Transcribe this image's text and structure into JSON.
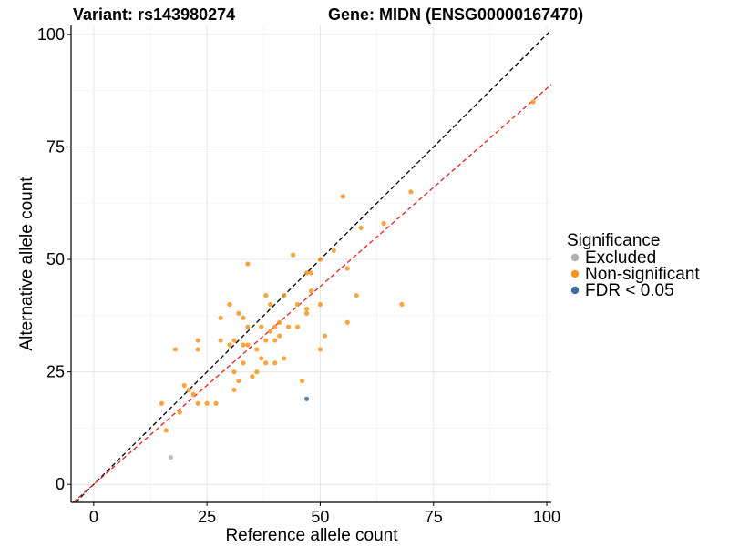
{
  "chart_data": {
    "type": "scatter",
    "title_left": "Variant: rs143980274",
    "title_right": "Gene: MIDN (ENSG00000167470)",
    "xlabel": "Reference allele count",
    "ylabel": "Alternative allele count",
    "xlim": [
      -5,
      101
    ],
    "ylim": [
      -4,
      102
    ],
    "xticks": [
      0,
      25,
      50,
      75,
      100
    ],
    "yticks": [
      0,
      25,
      50,
      75,
      100
    ],
    "grid": true,
    "legend": {
      "title": "Significance",
      "position": "right",
      "entries": [
        {
          "name": "Excluded",
          "color": "#b0b0b0"
        },
        {
          "name": "Non-significant",
          "color": "#f7941d"
        },
        {
          "name": "FDR < 0.05",
          "color": "#3b6ea5"
        }
      ]
    },
    "reference_lines": [
      {
        "name": "identity",
        "color": "#000000",
        "slope": 1.0,
        "intercept": 0
      },
      {
        "name": "fit",
        "color": "#e8201c",
        "slope": 0.88,
        "intercept": 0
      }
    ],
    "series": [
      {
        "name": "Excluded",
        "color": "#b0b0b0",
        "points": [
          [
            17,
            6
          ]
        ]
      },
      {
        "name": "FDR < 0.05",
        "color": "#3b6ea5",
        "points": [
          [
            47,
            19
          ]
        ]
      },
      {
        "name": "Non-significant",
        "color": "#f7941d",
        "points": [
          [
            97,
            85
          ],
          [
            70,
            65
          ],
          [
            55,
            64
          ],
          [
            64,
            58
          ],
          [
            59,
            57
          ],
          [
            53,
            52
          ],
          [
            44,
            51
          ],
          [
            50,
            50
          ],
          [
            34,
            49
          ],
          [
            56,
            48
          ],
          [
            48,
            47
          ],
          [
            47,
            47
          ],
          [
            58,
            42
          ],
          [
            68,
            40
          ],
          [
            50,
            40
          ],
          [
            48,
            43
          ],
          [
            38,
            42
          ],
          [
            42,
            42
          ],
          [
            30,
            40
          ],
          [
            39,
            40
          ],
          [
            45,
            40
          ],
          [
            47,
            39
          ],
          [
            32,
            38
          ],
          [
            47,
            38
          ],
          [
            28,
            37
          ],
          [
            33,
            37
          ],
          [
            41,
            36
          ],
          [
            56,
            36
          ],
          [
            34,
            35
          ],
          [
            40,
            35
          ],
          [
            37,
            35
          ],
          [
            43,
            35
          ],
          [
            45,
            35
          ],
          [
            39,
            34
          ],
          [
            41,
            33
          ],
          [
            51,
            33
          ],
          [
            38,
            32
          ],
          [
            23,
            32
          ],
          [
            28,
            32
          ],
          [
            31,
            32
          ],
          [
            40,
            32
          ],
          [
            34,
            31
          ],
          [
            30,
            31
          ],
          [
            33,
            31
          ],
          [
            36,
            30
          ],
          [
            50,
            30
          ],
          [
            18,
            30
          ],
          [
            23,
            30
          ],
          [
            42,
            28
          ],
          [
            37,
            28
          ],
          [
            33,
            27
          ],
          [
            38,
            27
          ],
          [
            40,
            27
          ],
          [
            31,
            25
          ],
          [
            35,
            24
          ],
          [
            36,
            25
          ],
          [
            46,
            23
          ],
          [
            32,
            23
          ],
          [
            20,
            22
          ],
          [
            21,
            21
          ],
          [
            31,
            21
          ],
          [
            22,
            20
          ],
          [
            15,
            18
          ],
          [
            23,
            18
          ],
          [
            25,
            18
          ],
          [
            27,
            18
          ],
          [
            19,
            16
          ],
          [
            16,
            12
          ]
        ]
      }
    ]
  }
}
